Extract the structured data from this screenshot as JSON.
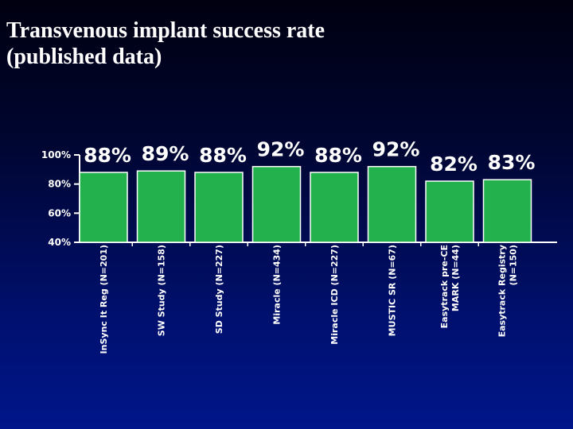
{
  "slide": {
    "title_lines": [
      "Transvenous implant success rate",
      "(published data)"
    ]
  },
  "chart_data": {
    "type": "bar",
    "categories": [
      [
        "InSync It Reg (N=201)"
      ],
      [
        "SW Study (N=158)"
      ],
      [
        "SD Study (N=227)"
      ],
      [
        "Miracle (N=434)"
      ],
      [
        "Miracle ICD (N=227)"
      ],
      [
        "MUSTIC SR (N=67)"
      ],
      [
        "Easytrack pre-CE",
        "MARK (N=44)"
      ],
      [
        "Easytrack Registry",
        "(N=150)"
      ]
    ],
    "values": [
      88,
      89,
      88,
      92,
      88,
      92,
      82,
      83
    ],
    "value_labels": [
      "88%",
      "89%",
      "88%",
      "92%",
      "88%",
      "92%",
      "82%",
      "83%"
    ],
    "y_ticks": [
      100,
      80,
      60,
      40
    ],
    "y_tick_labels": [
      "100%",
      "80%",
      "60%",
      "40%"
    ],
    "ylim": [
      40,
      100
    ],
    "grid": false,
    "legend": "none",
    "colors": {
      "bar": "#23b14d",
      "bar_edge": "#ffffff",
      "axis": "#ffffff"
    }
  }
}
